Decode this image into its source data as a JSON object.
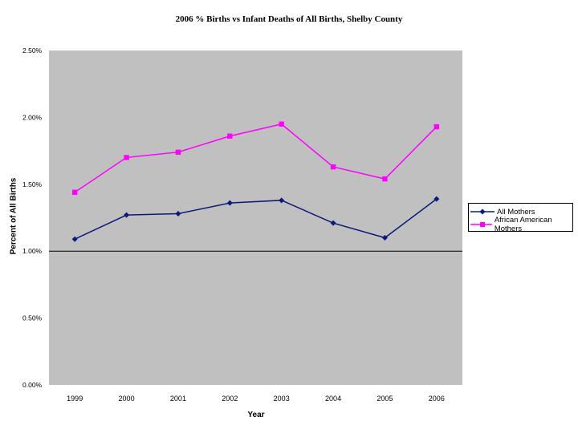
{
  "colors": {
    "slide_teal": "#1f7a74",
    "plot_bg": "#c0c0c0",
    "all_mothers": "#0a1a7a",
    "african_american_mothers": "#ff00ff"
  },
  "chart_data": {
    "type": "line",
    "title": "2006 % Births vs Infant Deaths of All Births, Shelby County",
    "xlabel": "Year",
    "ylabel": "Percent of All Births",
    "categories": [
      "1999",
      "2000",
      "2001",
      "2002",
      "2003",
      "2004",
      "2005",
      "2006"
    ],
    "ylim": [
      0,
      0.025
    ],
    "yticks": [
      "0.00%",
      "0.50%",
      "1.00%",
      "1.50%",
      "2.00%",
      "2.50%"
    ],
    "grid": false,
    "reference_line": 0.01,
    "legend_position": "right",
    "series": [
      {
        "name": "All Mothers",
        "marker": "diamond",
        "values": [
          0.0109,
          0.0127,
          0.0128,
          0.0136,
          0.0138,
          0.0121,
          0.011,
          0.0139
        ]
      },
      {
        "name": "African American Mothers",
        "marker": "square",
        "values": [
          0.0144,
          0.017,
          0.0174,
          0.0186,
          0.0195,
          0.0163,
          0.0154,
          0.0193
        ]
      }
    ]
  }
}
